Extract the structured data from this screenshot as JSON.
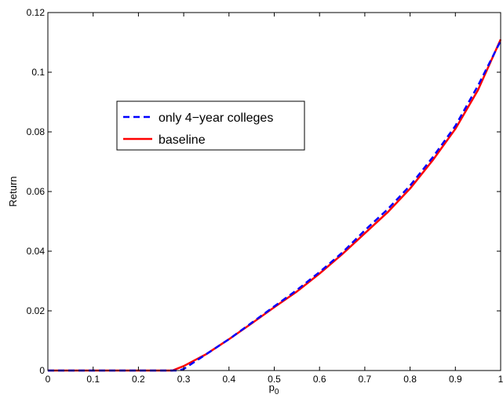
{
  "chart_data": {
    "type": "line",
    "title": "",
    "xlabel": "p",
    "xlabel_subscript": "0",
    "ylabel": "Return",
    "xlim": [
      0,
      1
    ],
    "ylim": [
      0,
      0.12
    ],
    "x_ticks": [
      0,
      0.1,
      0.2,
      0.3,
      0.4,
      0.5,
      0.6,
      0.7,
      0.8,
      0.9,
      1
    ],
    "x_tick_labels": [
      "0",
      "0.1",
      "0.2",
      "0.3",
      "0.4",
      "0.5",
      "0.6",
      "0.7",
      "0.8",
      "0.9",
      "1"
    ],
    "y_ticks": [
      0,
      0.02,
      0.04,
      0.06,
      0.08,
      0.1,
      0.12
    ],
    "y_tick_labels": [
      "0",
      "0.02",
      "0.04",
      "0.06",
      "0.08",
      "0.1",
      "0.12"
    ],
    "grid": false,
    "legend_position": "upper-left",
    "series": [
      {
        "name": "only 4−year colleges",
        "color": "#0000ff",
        "style": "dashed",
        "x": [
          0,
          0.1,
          0.2,
          0.28,
          0.29,
          0.3,
          0.35,
          0.4,
          0.45,
          0.5,
          0.55,
          0.6,
          0.65,
          0.7,
          0.75,
          0.8,
          0.85,
          0.9,
          0.95,
          1.0
        ],
        "y": [
          0,
          0,
          0,
          0,
          0,
          0.0005,
          0.0055,
          0.0105,
          0.016,
          0.0215,
          0.027,
          0.033,
          0.0395,
          0.047,
          0.054,
          0.062,
          0.0715,
          0.082,
          0.0955,
          0.1105
        ]
      },
      {
        "name": "baseline",
        "color": "#ff0000",
        "style": "solid",
        "x": [
          0,
          0.1,
          0.2,
          0.275,
          0.3,
          0.35,
          0.4,
          0.45,
          0.5,
          0.55,
          0.6,
          0.65,
          0.7,
          0.75,
          0.8,
          0.85,
          0.9,
          0.95,
          1.0
        ],
        "y": [
          0,
          0,
          0,
          0,
          0.0015,
          0.0055,
          0.0105,
          0.0158,
          0.0212,
          0.0265,
          0.0325,
          0.039,
          0.046,
          0.053,
          0.061,
          0.0705,
          0.081,
          0.094,
          0.111
        ]
      }
    ]
  }
}
